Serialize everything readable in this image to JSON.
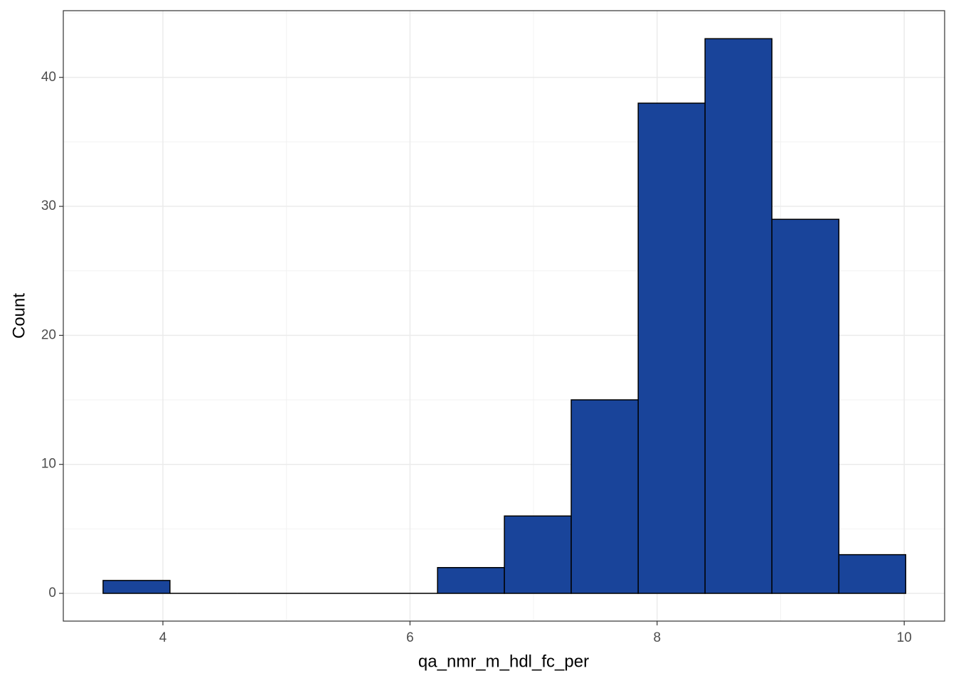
{
  "chart_data": {
    "type": "histogram",
    "x_label": "qa_nmr_m_hdl_fc_per",
    "y_label": "Count",
    "bins": [
      3.516,
      4.057,
      4.599,
      5.14,
      5.681,
      6.223,
      6.764,
      7.305,
      7.847,
      8.388,
      8.929,
      9.471,
      10.012
    ],
    "values": [
      1,
      0,
      0,
      0,
      0,
      2,
      6,
      15,
      38,
      43,
      29,
      3
    ],
    "color": "#19449a",
    "edge_color": "#000000",
    "xlim": [
      3.194,
      10.327
    ],
    "ylim": [
      -2.15,
      45.17
    ],
    "xticks": [
      4,
      6,
      8,
      10
    ],
    "yticks": [
      0,
      10,
      20,
      30,
      40
    ],
    "minor_xticks": [
      5,
      7,
      9
    ],
    "minor_yticks": [
      5,
      15,
      25,
      35,
      45
    ],
    "grid": true
  }
}
